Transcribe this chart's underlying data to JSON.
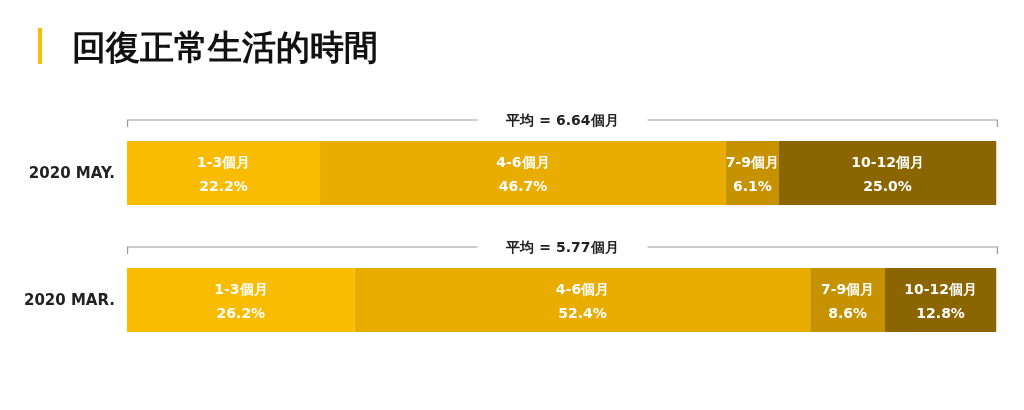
{
  "chart_data": {
    "type": "bar",
    "orientation": "horizontal",
    "stacked": true,
    "title": "回復正常生活的時間",
    "categories": [
      "2020 MAY.",
      "2020 MAR."
    ],
    "xlim": [
      0,
      100.2
    ],
    "tick_labels": "y",
    "series": [
      {
        "name": "1-3個月",
        "color": "#f9bc00",
        "values": [
          22.2,
          26.2
        ],
        "value_labels": [
          "22.2%",
          "26.2%"
        ]
      },
      {
        "name": "4-6個月",
        "color": "#e8ad00",
        "values": [
          46.7,
          52.4
        ],
        "value_labels": [
          "46.7%",
          "52.4%"
        ]
      },
      {
        "name": "7-9個月",
        "color": "#c69200",
        "values": [
          6.1,
          8.6
        ],
        "value_labels": [
          "6.1%",
          "8.6%"
        ]
      },
      {
        "name": "10-12個月",
        "color": "#8b6600",
        "values": [
          25.0,
          12.8
        ],
        "value_labels": [
          "25.0%",
          "12.8%"
        ]
      }
    ],
    "annotations": [
      "平均 = 6.64個月",
      "平均 = 5.77個月"
    ]
  }
}
